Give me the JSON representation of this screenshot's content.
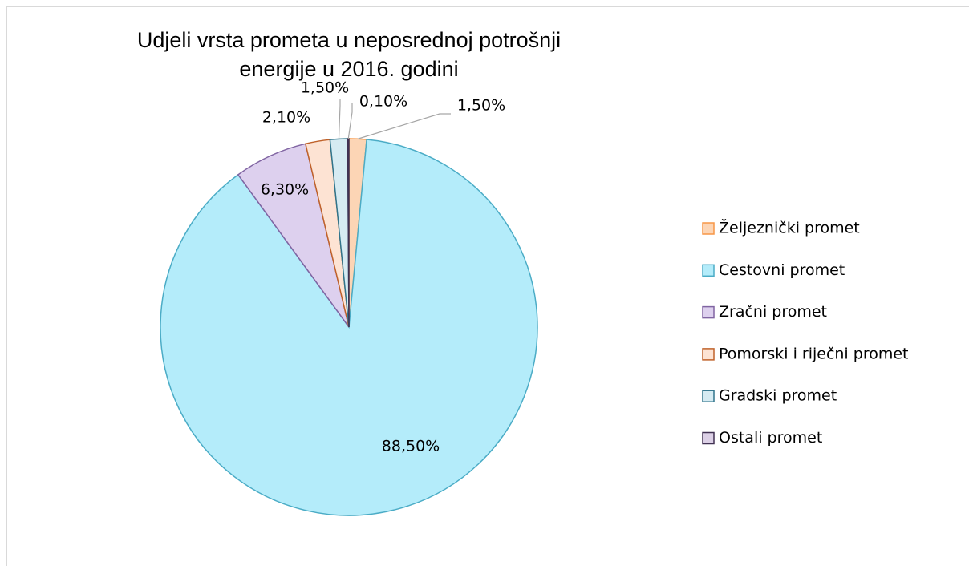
{
  "chart_data": {
    "type": "pie",
    "title": "Udjeli vrsta prometa u neposrednoj potrošnji energije u 2016. godini",
    "categories": [
      "Željeznički promet",
      "Cestovni promet",
      "Zračni promet",
      "Pomorski i riječni promet",
      "Gradski promet",
      "Ostali promet"
    ],
    "values": [
      1.5,
      88.5,
      6.3,
      2.1,
      1.5,
      0.1
    ],
    "value_labels": [
      "1,50%",
      "88,50%",
      "6,30%",
      "2,10%",
      "1,50%",
      "0,10%"
    ],
    "colors": [
      "#fcd5b5",
      "#b4ecfa",
      "#ddd0ee",
      "#fde3d3",
      "#d6ebf2",
      "#dcd0e6"
    ],
    "edge_colors": [
      "#f79646",
      "#4bacc6",
      "#8064a2",
      "#c0622a",
      "#31758c",
      "#403152"
    ],
    "legend": "right"
  }
}
